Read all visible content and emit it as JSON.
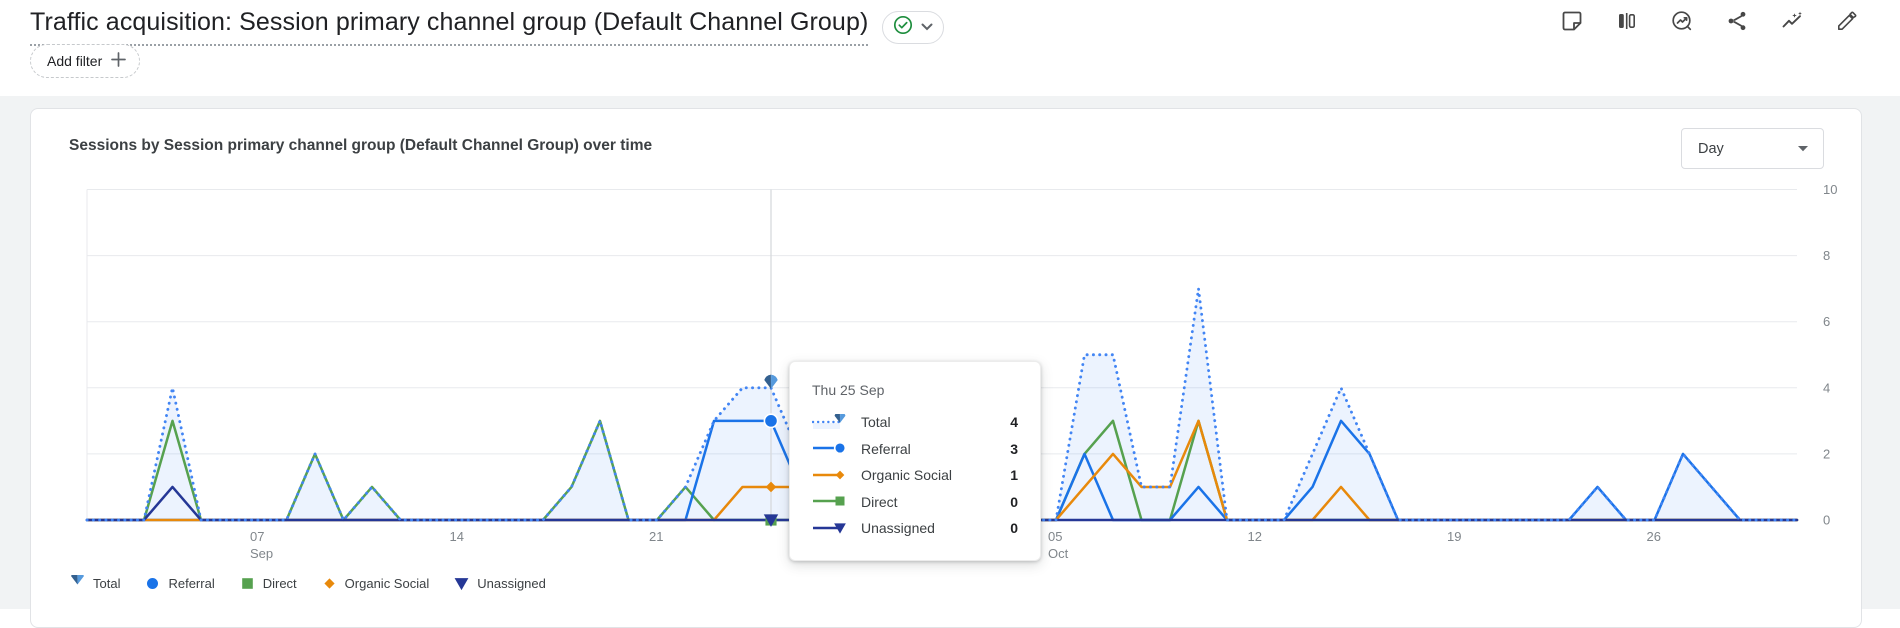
{
  "page": {
    "title": "Traffic acquisition: Session primary channel group (Default Channel Group)",
    "add_filter_label": "Add filter",
    "toolbar_icons": [
      "note-icon",
      "comparison-icon",
      "insights-circle-icon",
      "share-icon",
      "auto-graph-icon",
      "edit-pencil-icon"
    ]
  },
  "card": {
    "chart_title": "Sessions by Session primary channel group (Default Channel Group) over time",
    "granularity": {
      "selected": "Day"
    }
  },
  "tooltip": {
    "date": "Thu 25 Sep",
    "rows": [
      {
        "series": "Total",
        "value": 4
      },
      {
        "series": "Referral",
        "value": 3
      },
      {
        "series": "Organic Social",
        "value": 1
      },
      {
        "series": "Direct",
        "value": 0
      },
      {
        "series": "Unassigned",
        "value": 0
      }
    ]
  },
  "legend": [
    "Total",
    "Referral",
    "Direct",
    "Organic Social",
    "Unassigned"
  ],
  "colors": {
    "total": "#4285f4",
    "referral": "#1a73e8",
    "organic_social": "#e8890b",
    "direct": "#56a14f",
    "unassigned": "#253796",
    "total_fill": "rgba(66,133,244,0.10)",
    "grid": "#e8eaed",
    "axis_label": "#80868b",
    "hover_line": "#d7dadd",
    "marker_left": "#33608f",
    "marker_right": "#569add",
    "badge_check": "#1e8e3e",
    "icon": "#474747"
  },
  "chart_data": {
    "type": "line",
    "title": "Sessions by Session primary channel group (Default Channel Group) over time",
    "x_unit": "day",
    "x_range_days": 61,
    "x_ticks": [
      {
        "index": 6,
        "label": "07",
        "sublabel": "Sep"
      },
      {
        "index": 13,
        "label": "14"
      },
      {
        "index": 20,
        "label": "21"
      },
      {
        "index": 34,
        "label": "05",
        "sublabel": "Oct"
      },
      {
        "index": 41,
        "label": "12"
      },
      {
        "index": 48,
        "label": "19"
      },
      {
        "index": 55,
        "label": "26"
      }
    ],
    "y_ticks": [
      0,
      2,
      4,
      6,
      8,
      10
    ],
    "ylim": [
      0,
      10
    ],
    "grid": true,
    "legend_position": "bottom",
    "hover_index": 24,
    "hover_label": "Thu 25 Sep",
    "series": [
      {
        "name": "Total",
        "style": "dotted",
        "marker": "ga-fan",
        "color_key": "total",
        "fill_under": true,
        "values": [
          0,
          0,
          0,
          4,
          0,
          0,
          0,
          0,
          2,
          0,
          1,
          0,
          0,
          0,
          0,
          0,
          0,
          1,
          3,
          0,
          0,
          1,
          3,
          4,
          4,
          2,
          0,
          0,
          0,
          0,
          0,
          0,
          0,
          0,
          0,
          5,
          5,
          1,
          1,
          7,
          0,
          0,
          0,
          2,
          4,
          2,
          0,
          0,
          0,
          0,
          0,
          0,
          0,
          1,
          0,
          0,
          2,
          1,
          0,
          0,
          0
        ]
      },
      {
        "name": "Referral",
        "style": "solid",
        "marker": "circle",
        "color_key": "referral",
        "values": [
          0,
          0,
          0,
          0,
          0,
          0,
          0,
          0,
          0,
          0,
          0,
          0,
          0,
          0,
          0,
          0,
          0,
          0,
          0,
          0,
          0,
          0,
          3,
          3,
          3,
          1,
          0,
          0,
          0,
          0,
          0,
          0,
          0,
          0,
          0,
          2,
          0,
          0,
          0,
          1,
          0,
          0,
          0,
          1,
          3,
          2,
          0,
          0,
          0,
          0,
          0,
          0,
          0,
          1,
          0,
          0,
          2,
          1,
          0,
          0,
          0
        ]
      },
      {
        "name": "Organic Social",
        "style": "solid",
        "marker": "diamond",
        "color_key": "organic_social",
        "values": [
          0,
          0,
          0,
          0,
          0,
          0,
          0,
          0,
          0,
          0,
          0,
          0,
          0,
          0,
          0,
          0,
          0,
          0,
          0,
          0,
          0,
          0,
          0,
          1,
          1,
          1,
          0,
          0,
          0,
          0,
          0,
          0,
          0,
          0,
          0,
          1,
          2,
          1,
          1,
          3,
          0,
          0,
          0,
          0,
          1,
          0,
          0,
          0,
          0,
          0,
          0,
          0,
          0,
          0,
          0,
          0,
          0,
          0,
          0,
          0,
          0
        ]
      },
      {
        "name": "Direct",
        "style": "solid",
        "marker": "square",
        "color_key": "direct",
        "values": [
          0,
          0,
          0,
          3,
          0,
          0,
          0,
          0,
          2,
          0,
          1,
          0,
          0,
          0,
          0,
          0,
          0,
          1,
          3,
          0,
          0,
          1,
          0,
          0,
          0,
          0,
          0,
          0,
          0,
          0,
          0,
          0,
          0,
          0,
          0,
          2,
          3,
          0,
          0,
          3,
          0,
          0,
          0,
          0,
          0,
          0,
          0,
          0,
          0,
          0,
          0,
          0,
          0,
          0,
          0,
          0,
          0,
          0,
          0,
          0,
          0
        ]
      },
      {
        "name": "Unassigned",
        "style": "solid",
        "marker": "triangle-down",
        "color_key": "unassigned",
        "values": [
          0,
          0,
          0,
          1,
          0,
          0,
          0,
          0,
          0,
          0,
          0,
          0,
          0,
          0,
          0,
          0,
          0,
          0,
          0,
          0,
          0,
          0,
          0,
          0,
          0,
          0,
          0,
          0,
          0,
          0,
          0,
          0,
          0,
          0,
          0,
          0,
          0,
          0,
          0,
          0,
          0,
          0,
          0,
          0,
          0,
          0,
          0,
          0,
          0,
          0,
          0,
          0,
          0,
          0,
          0,
          0,
          0,
          0,
          0,
          0,
          0
        ]
      }
    ]
  }
}
